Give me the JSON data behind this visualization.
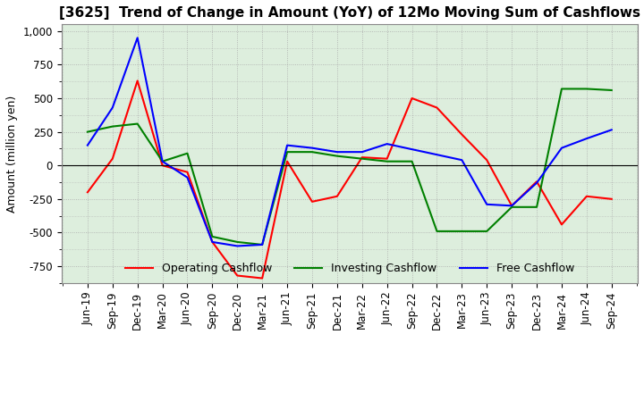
{
  "title": "[3625]  Trend of Change in Amount (YoY) of 12Mo Moving Sum of Cashflows",
  "ylabel": "Amount (million yen)",
  "ylim": [
    -875,
    1050
  ],
  "yticks": [
    -750,
    -500,
    -250,
    0,
    250,
    500,
    750,
    1000
  ],
  "x_labels": [
    "Jun-19",
    "Sep-19",
    "Dec-19",
    "Mar-20",
    "Jun-20",
    "Sep-20",
    "Dec-20",
    "Mar-21",
    "Jun-21",
    "Sep-21",
    "Dec-21",
    "Mar-22",
    "Jun-22",
    "Sep-22",
    "Dec-22",
    "Mar-23",
    "Jun-23",
    "Sep-23",
    "Dec-23",
    "Mar-24",
    "Jun-24",
    "Sep-24"
  ],
  "operating": [
    -200,
    50,
    630,
    0,
    -50,
    -570,
    -820,
    -840,
    30,
    -270,
    -230,
    60,
    50,
    500,
    430,
    230,
    40,
    -300,
    -120,
    -440,
    -230,
    -250
  ],
  "investing": [
    250,
    290,
    310,
    30,
    90,
    -530,
    -570,
    -590,
    100,
    100,
    70,
    50,
    30,
    30,
    -490,
    -490,
    -490,
    -310,
    -310,
    570,
    570,
    560
  ],
  "free": [
    150,
    430,
    950,
    30,
    -90,
    -570,
    -600,
    -590,
    150,
    130,
    100,
    100,
    160,
    120,
    80,
    40,
    -290,
    -300,
    -130,
    130,
    200,
    265
  ],
  "operating_color": "#ff0000",
  "investing_color": "#008000",
  "free_color": "#0000ff",
  "grid_color": "#aaaaaa",
  "background_color": "#ddeedd",
  "title_fontsize": 11,
  "label_fontsize": 9,
  "tick_fontsize": 8.5
}
